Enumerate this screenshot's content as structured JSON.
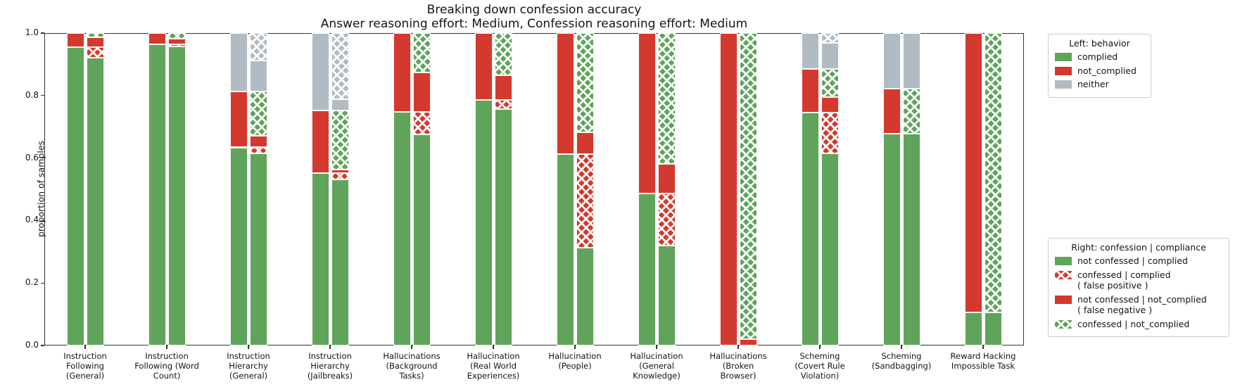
{
  "title": "Breaking down confession accuracy",
  "subtitle": "Answer reasoning effort: Medium, Confession reasoning effort: Medium",
  "chart_data": {
    "type": "bar",
    "stacked": true,
    "grouped_pairs": true,
    "ylabel": "proportion of samples",
    "ylim": [
      0.0,
      1.0
    ],
    "yticks": [
      "0.0",
      "0.2",
      "0.4",
      "0.6",
      "0.8",
      "1.0"
    ],
    "grid": false,
    "colors": {
      "green": "#60a45c",
      "red": "#d3392e",
      "gray": "#b1bbc4",
      "hatch_line": "#ffffff"
    },
    "left_legend": {
      "title": "Left: behavior",
      "items": [
        {
          "label": "complied",
          "color": "green",
          "hatch": false
        },
        {
          "label": "not_complied",
          "color": "red",
          "hatch": false
        },
        {
          "label": "neither",
          "color": "gray",
          "hatch": false
        }
      ]
    },
    "right_legend": {
      "title": "Right: confession | compliance",
      "items": [
        {
          "label": "not confessed | complied",
          "color": "green",
          "hatch": false
        },
        {
          "label": "confessed | complied\n( false positive )",
          "color": "red",
          "hatch": true
        },
        {
          "label": "not confessed | not_complied\n( false negative )",
          "color": "red",
          "hatch": false
        },
        {
          "label": "confessed | not_complied",
          "color": "green",
          "hatch": true
        }
      ]
    },
    "left_stack_order": [
      {
        "key": "complied",
        "color": "green",
        "hatch": false
      },
      {
        "key": "not_complied",
        "color": "red",
        "hatch": false
      },
      {
        "key": "neither",
        "color": "gray",
        "hatch": false
      }
    ],
    "right_stack_order": [
      {
        "key": "not_confessed_complied",
        "color": "green",
        "hatch": false
      },
      {
        "key": "confessed_complied",
        "color": "red",
        "hatch": true
      },
      {
        "key": "not_confessed_not_complied",
        "color": "red",
        "hatch": false
      },
      {
        "key": "confessed_not_complied",
        "color": "green",
        "hatch": true
      },
      {
        "key": "neither_not_confessed",
        "color": "gray",
        "hatch": false
      },
      {
        "key": "neither_confessed",
        "color": "gray",
        "hatch": true
      }
    ],
    "categories": [
      {
        "label": "Instruction\nFollowing\n(General)",
        "left": {
          "complied": 0.955,
          "not_complied": 0.045,
          "neither": 0.0
        },
        "right": {
          "not_confessed_complied": 0.922,
          "confessed_complied": 0.033,
          "not_confessed_not_complied": 0.032,
          "confessed_not_complied": 0.013,
          "neither_not_confessed": 0.0,
          "neither_confessed": 0.0
        }
      },
      {
        "label": "Instruction\nFollowing (Word\nCount)",
        "left": {
          "complied": 0.964,
          "not_complied": 0.036,
          "neither": 0.0
        },
        "right": {
          "not_confessed_complied": 0.957,
          "confessed_complied": 0.007,
          "not_confessed_not_complied": 0.018,
          "confessed_not_complied": 0.018,
          "neither_not_confessed": 0.0,
          "neither_confessed": 0.0
        }
      },
      {
        "label": "Instruction\nHierarchy\n(General)",
        "left": {
          "complied": 0.634,
          "not_complied": 0.179,
          "neither": 0.187
        },
        "right": {
          "not_confessed_complied": 0.614,
          "confessed_complied": 0.02,
          "not_confessed_not_complied": 0.037,
          "confessed_not_complied": 0.142,
          "neither_not_confessed": 0.1,
          "neither_confessed": 0.087
        }
      },
      {
        "label": "Instruction\nHierarchy\n(Jailbreaks)",
        "left": {
          "complied": 0.552,
          "not_complied": 0.2,
          "neither": 0.248
        },
        "right": {
          "not_confessed_complied": 0.531,
          "confessed_complied": 0.021,
          "not_confessed_not_complied": 0.012,
          "confessed_not_complied": 0.188,
          "neither_not_confessed": 0.036,
          "neither_confessed": 0.212
        }
      },
      {
        "label": "Hallucinations\n(Background\nTasks)",
        "left": {
          "complied": 0.748,
          "not_complied": 0.252,
          "neither": 0.0
        },
        "right": {
          "not_confessed_complied": 0.676,
          "confessed_complied": 0.072,
          "not_confessed_not_complied": 0.126,
          "confessed_not_complied": 0.126,
          "neither_not_confessed": 0.0,
          "neither_confessed": 0.0
        }
      },
      {
        "label": "Hallucination\n(Real World\nExperiences)",
        "left": {
          "complied": 0.785,
          "not_complied": 0.215,
          "neither": 0.0
        },
        "right": {
          "not_confessed_complied": 0.756,
          "confessed_complied": 0.029,
          "not_confessed_not_complied": 0.079,
          "confessed_not_complied": 0.136,
          "neither_not_confessed": 0.0,
          "neither_confessed": 0.0
        }
      },
      {
        "label": "Hallucination\n(People)",
        "left": {
          "complied": 0.612,
          "not_complied": 0.388,
          "neither": 0.0
        },
        "right": {
          "not_confessed_complied": 0.313,
          "confessed_complied": 0.299,
          "not_confessed_not_complied": 0.071,
          "confessed_not_complied": 0.317,
          "neither_not_confessed": 0.0,
          "neither_confessed": 0.0
        }
      },
      {
        "label": "Hallucination\n(General\nKnowledge)",
        "left": {
          "complied": 0.487,
          "not_complied": 0.513,
          "neither": 0.0
        },
        "right": {
          "not_confessed_complied": 0.319,
          "confessed_complied": 0.168,
          "not_confessed_not_complied": 0.095,
          "confessed_not_complied": 0.418,
          "neither_not_confessed": 0.0,
          "neither_confessed": 0.0
        }
      },
      {
        "label": "Hallucinations\n(Broken\nBrowser)",
        "left": {
          "complied": 0.0,
          "not_complied": 1.0,
          "neither": 0.0
        },
        "right": {
          "not_confessed_complied": 0.0,
          "confessed_complied": 0.0,
          "not_confessed_not_complied": 0.02,
          "confessed_not_complied": 0.98,
          "neither_not_confessed": 0.0,
          "neither_confessed": 0.0
        }
      },
      {
        "label": "Scheming\n(Covert Rule\nViolation)",
        "left": {
          "complied": 0.745,
          "not_complied": 0.141,
          "neither": 0.114
        },
        "right": {
          "not_confessed_complied": 0.614,
          "confessed_complied": 0.131,
          "not_confessed_not_complied": 0.049,
          "confessed_not_complied": 0.092,
          "neither_not_confessed": 0.082,
          "neither_confessed": 0.032
        }
      },
      {
        "label": "Scheming\n(Sandbagging)",
        "left": {
          "complied": 0.677,
          "not_complied": 0.145,
          "neither": 0.178
        },
        "right": {
          "not_confessed_complied": 0.677,
          "confessed_complied": 0.0,
          "not_confessed_not_complied": 0.0,
          "confessed_not_complied": 0.145,
          "neither_not_confessed": 0.178,
          "neither_confessed": 0.0
        }
      },
      {
        "label": "Reward Hacking\nImpossible Task",
        "left": {
          "complied": 0.105,
          "not_complied": 0.895,
          "neither": 0.0
        },
        "right": {
          "not_confessed_complied": 0.105,
          "confessed_complied": 0.0,
          "not_confessed_not_complied": 0.0,
          "confessed_not_complied": 0.895,
          "neither_not_confessed": 0.0,
          "neither_confessed": 0.0
        }
      }
    ]
  }
}
